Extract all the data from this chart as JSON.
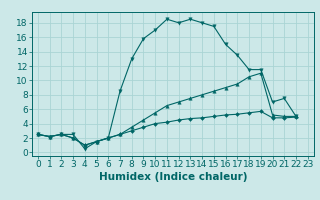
{
  "xlabel": "Humidex (Indice chaleur)",
  "bg_color": "#cce8e8",
  "line_color": "#006666",
  "grid_color": "#aad4d4",
  "xlim": [
    -0.5,
    23.5
  ],
  "ylim": [
    -0.5,
    19.5
  ],
  "xticks": [
    0,
    1,
    2,
    3,
    4,
    5,
    6,
    7,
    8,
    9,
    10,
    11,
    12,
    13,
    14,
    15,
    16,
    17,
    18,
    19,
    20,
    21,
    22,
    23
  ],
  "yticks": [
    0,
    2,
    4,
    6,
    8,
    10,
    12,
    14,
    16,
    18
  ],
  "series": [
    {
      "x": [
        0,
        1,
        2,
        3,
        4,
        5,
        6,
        7,
        8,
        9,
        10,
        11,
        12,
        13,
        14,
        15,
        16,
        17,
        18,
        19,
        20,
        21,
        22
      ],
      "y": [
        2.5,
        2.2,
        2.5,
        2.5,
        0.5,
        1.5,
        2.0,
        8.5,
        13.0,
        15.8,
        17.0,
        18.5,
        18.0,
        18.5,
        18.0,
        17.5,
        15.0,
        13.5,
        11.5,
        11.5,
        7.0,
        7.5,
        5.0
      ]
    },
    {
      "x": [
        0,
        1,
        2,
        3,
        4,
        5,
        6,
        7,
        8,
        9,
        10,
        11,
        12,
        13,
        14,
        15,
        16,
        17,
        18,
        19,
        20,
        21,
        22
      ],
      "y": [
        2.5,
        2.2,
        2.5,
        2.0,
        1.0,
        1.5,
        2.0,
        2.5,
        3.5,
        4.5,
        5.5,
        6.5,
        7.0,
        7.5,
        8.0,
        8.5,
        9.0,
        9.5,
        10.5,
        11.0,
        5.2,
        5.0,
        5.0
      ]
    },
    {
      "x": [
        0,
        1,
        2,
        3,
        4,
        5,
        6,
        7,
        8,
        9,
        10,
        11,
        12,
        13,
        14,
        15,
        16,
        17,
        18,
        19,
        20,
        21,
        22
      ],
      "y": [
        2.5,
        2.2,
        2.5,
        2.0,
        1.0,
        1.5,
        2.0,
        2.5,
        3.0,
        3.5,
        4.0,
        4.2,
        4.5,
        4.7,
        4.8,
        5.0,
        5.2,
        5.3,
        5.5,
        5.7,
        4.8,
        4.8,
        4.9
      ]
    }
  ],
  "tick_fontsize": 6.5,
  "label_fontsize": 7.5
}
